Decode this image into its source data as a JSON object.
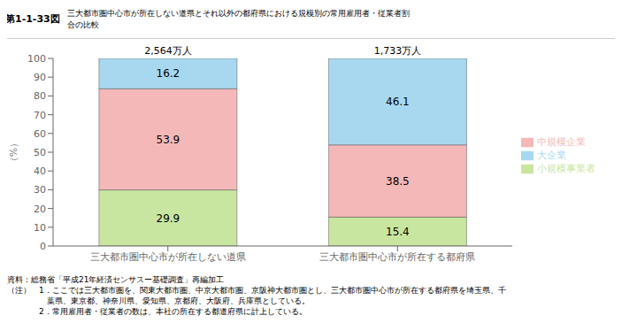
{
  "chart_data": {
    "type": "bar",
    "title": "第1-1-33図",
    "subtitle": "三大都市圏中心市が所在しない道県とそれ以外の都府県における規模別の常用雇用者・従業者割\n合の比較",
    "ylabel": "（%）",
    "categories": [
      "三大都市圏中心市が所在しない道県",
      "三大都市圏中心市が所在する都府県"
    ],
    "series": [
      {
        "name": "小規模事業者",
        "color": "#c8e6a0",
        "values": [
          29.9,
          15.4
        ]
      },
      {
        "name": "中規模企業",
        "color": "#f4b8b8",
        "values": [
          53.9,
          38.5
        ]
      },
      {
        "name": "大企業",
        "color": "#a8d8f0",
        "values": [
          16.2,
          46.1
        ]
      }
    ],
    "stacked": true,
    "data_labels": true,
    "ylim": [
      0,
      100
    ],
    "yticks": [
      0,
      10,
      20,
      30,
      40,
      50,
      60,
      70,
      80,
      90,
      100
    ],
    "grid": false,
    "legend": "right",
    "annotations": [
      {
        "text": "2,564万人",
        "category": "三大都市圏中心市が所在しない道県"
      },
      {
        "text": "1,733万人",
        "category": "三大都市圏中心市が所在する都府県"
      },
      {
        "text": "資料：総務省「平成21年経済センサスー基礎調査」再編加工"
      },
      {
        "text": "（注）　1．ここでは三大都市圏を、関東大都市圏、中京大都市圏、京阪神大都市圏とし、三大都市圏中心市が所在する都府県を埼玉県、千\n　　　　　葉県、東京都、神奈川県、愛知県、京都府、大阪府、兵庫県としている。"
      },
      {
        "text": "　　　　2．常用雇用者・従業者の数は、本社の所在する都道府県に計上している。"
      }
    ]
  }
}
